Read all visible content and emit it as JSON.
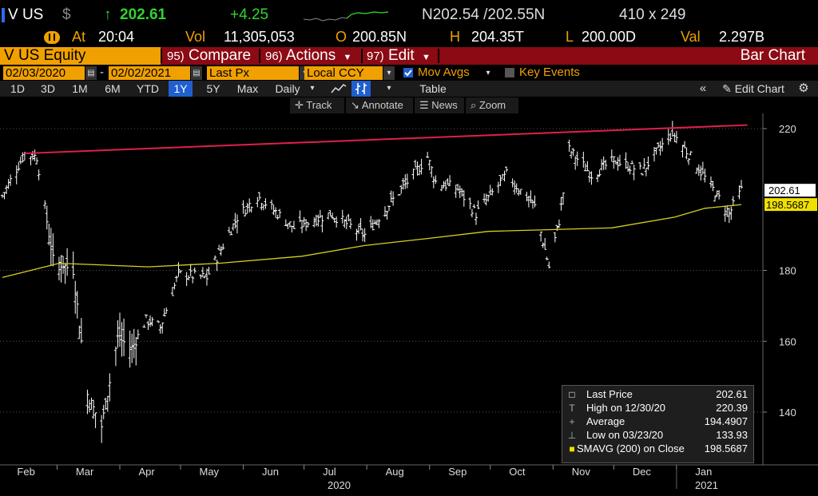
{
  "quote": {
    "ticker": "V US",
    "currency": "$",
    "arrow": "↑",
    "last": "202.61",
    "change": "+4.25",
    "bid_ask": "N202.54 /202.55N",
    "size": "410 x 249",
    "at_label": "At",
    "time": "20:04",
    "vol_label": "Vol",
    "volume": "11,305,053",
    "open_label": "O",
    "open": "200.85N",
    "high_label": "H",
    "high": "204.35T",
    "low_label": "L",
    "low": "200.00D",
    "val_label": "Val",
    "val": "2.297B"
  },
  "function_bar": {
    "security": "V US Equity",
    "compare_num": "95)",
    "compare": "Compare",
    "actions_num": "96)",
    "actions": "Actions",
    "edit_num": "97)",
    "edit": "Edit",
    "title": "Bar Chart"
  },
  "params": {
    "start_date": "02/03/2020",
    "dash": "-",
    "end_date": "02/02/2021",
    "field": "Last Px",
    "currency": "Local CCY",
    "mov_avgs": "Mov Avgs",
    "key_events": "Key Events"
  },
  "toolbar": {
    "periods": [
      "1D",
      "3D",
      "1M",
      "6M",
      "YTD",
      "1Y",
      "5Y",
      "Max"
    ],
    "selected_period": "1Y",
    "frequency": "Daily",
    "table": "Table",
    "edit_chart": "Edit Chart"
  },
  "tools": {
    "track": "Track",
    "annotate": "Annotate",
    "news": "News",
    "zoom": "Zoom"
  },
  "colors": {
    "orange": "#f0a000",
    "red_bar": "#8b0a14",
    "up_green": "#2fd42f",
    "resistance_line": "#e0204a",
    "sma_line": "#d8d020",
    "selected_blue": "#1f5fd0"
  },
  "chart_data": {
    "type": "ohlc-bar",
    "y_ticks": [
      140,
      160,
      180,
      220
    ],
    "ylim": [
      132,
      224
    ],
    "x_months": [
      "Feb",
      "Mar",
      "Apr",
      "May",
      "Jun",
      "Jul",
      "Aug",
      "Sep",
      "Oct",
      "Nov",
      "Dec",
      "Jan"
    ],
    "x_year_labels": [
      "2020",
      "2021"
    ],
    "last_price_tag": "202.61",
    "sma_tag": "198.5687",
    "closes": [
      {
        "date": "2020-02-03",
        "close": 201
      },
      {
        "date": "2020-02-14",
        "close": 213
      },
      {
        "date": "2020-02-20",
        "close": 212
      },
      {
        "date": "2020-02-28",
        "close": 183
      },
      {
        "date": "2020-03-09",
        "close": 180
      },
      {
        "date": "2020-03-16",
        "close": 145
      },
      {
        "date": "2020-03-23",
        "close": 136
      },
      {
        "date": "2020-03-31",
        "close": 161
      },
      {
        "date": "2020-04-07",
        "close": 158
      },
      {
        "date": "2020-04-14",
        "close": 166
      },
      {
        "date": "2020-04-21",
        "close": 164
      },
      {
        "date": "2020-04-30",
        "close": 179
      },
      {
        "date": "2020-05-14",
        "close": 178
      },
      {
        "date": "2020-05-29",
        "close": 195
      },
      {
        "date": "2020-06-08",
        "close": 201
      },
      {
        "date": "2020-06-26",
        "close": 192
      },
      {
        "date": "2020-07-14",
        "close": 196
      },
      {
        "date": "2020-07-31",
        "close": 190
      },
      {
        "date": "2020-08-14",
        "close": 200
      },
      {
        "date": "2020-08-31",
        "close": 212
      },
      {
        "date": "2020-09-04",
        "close": 205
      },
      {
        "date": "2020-09-15",
        "close": 203
      },
      {
        "date": "2020-09-24",
        "close": 196
      },
      {
        "date": "2020-10-09",
        "close": 207
      },
      {
        "date": "2020-10-23",
        "close": 198
      },
      {
        "date": "2020-10-30",
        "close": 181
      },
      {
        "date": "2020-11-04",
        "close": 194
      },
      {
        "date": "2020-11-09",
        "close": 214
      },
      {
        "date": "2020-11-20",
        "close": 207
      },
      {
        "date": "2020-12-01",
        "close": 211
      },
      {
        "date": "2020-12-15",
        "close": 208
      },
      {
        "date": "2020-12-30",
        "close": 219
      },
      {
        "date": "2021-01-08",
        "close": 212
      },
      {
        "date": "2021-01-20",
        "close": 202
      },
      {
        "date": "2021-01-27",
        "close": 196
      },
      {
        "date": "2021-02-02",
        "close": 202.61
      }
    ],
    "sma200": [
      {
        "date": "2020-02-03",
        "value": 178
      },
      {
        "date": "2020-03-02",
        "value": 182
      },
      {
        "date": "2020-04-15",
        "value": 181
      },
      {
        "date": "2020-05-20",
        "value": 182
      },
      {
        "date": "2020-06-30",
        "value": 184
      },
      {
        "date": "2020-07-31",
        "value": 187
      },
      {
        "date": "2020-08-31",
        "value": 189
      },
      {
        "date": "2020-09-30",
        "value": 191
      },
      {
        "date": "2020-10-31",
        "value": 191.5
      },
      {
        "date": "2020-11-30",
        "value": 192
      },
      {
        "date": "2020-12-31",
        "value": 195
      },
      {
        "date": "2021-01-15",
        "value": 197.5
      },
      {
        "date": "2021-02-02",
        "value": 198.5687
      }
    ],
    "resistance": [
      {
        "date": "2020-02-14",
        "value": 213
      },
      {
        "date": "2021-02-05",
        "value": 221
      }
    ]
  },
  "legend": {
    "rows": [
      {
        "icon": "□",
        "label": "Last Price",
        "value": "202.61"
      },
      {
        "icon": "T",
        "label": "High on 12/30/20",
        "value": "220.39"
      },
      {
        "icon": "+",
        "label": "Average",
        "value": "194.4907"
      },
      {
        "icon": "⊥",
        "label": "Low on 03/23/20",
        "value": "133.93"
      },
      {
        "icon": "■",
        "label": "SMAVG (200)  on Close",
        "value": "198.5687"
      }
    ]
  }
}
